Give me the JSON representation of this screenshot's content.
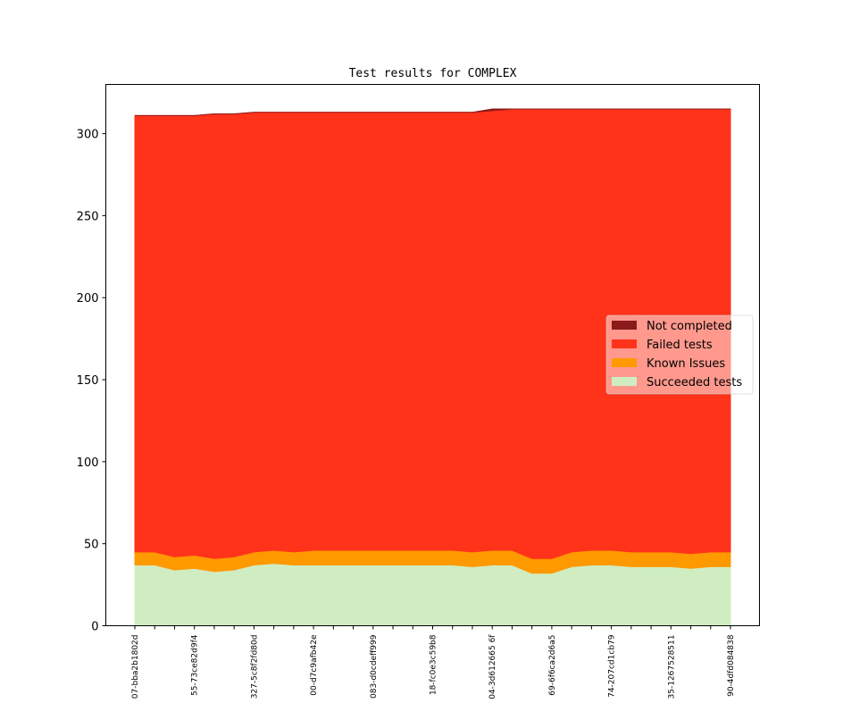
{
  "chart_data": {
    "type": "area",
    "stacked": true,
    "title": "Test results for COMPLEX",
    "xlabel": "",
    "ylabel": "",
    "ylim": [
      0,
      330
    ],
    "yticks": [
      0,
      50,
      100,
      150,
      200,
      250,
      300
    ],
    "grid": false,
    "legend_position": "right",
    "x_tick_labels": [
      "07-bba2b1802d",
      "",
      "",
      "55-73ce82d9f4",
      "",
      "",
      "327-5c8f2fd80d",
      "",
      "",
      "00-d7c9afb42e",
      "",
      "",
      "083-d0cdeff999",
      "",
      "",
      "18-fc0e3c59b8",
      "",
      "",
      "04-3d612665 6f",
      "",
      "",
      "69-6f6ca2d6a5",
      "",
      "",
      "74-207cd1cb79",
      "",
      "",
      "35-1267528511",
      "",
      "",
      "90-4dfd084838"
    ],
    "series": [
      {
        "name": "Succeeded tests",
        "color": "#d0edc2",
        "values": [
          37,
          37,
          34,
          35,
          33,
          34,
          37,
          38,
          37,
          37,
          37,
          37,
          37,
          37,
          37,
          37,
          37,
          36,
          37,
          37,
          32,
          32,
          36,
          37,
          37,
          36,
          36,
          36,
          35,
          36,
          36
        ]
      },
      {
        "name": "Known Issues",
        "color": "#ff9900",
        "values": [
          8,
          8,
          8,
          8,
          8,
          8,
          8,
          8,
          8,
          9,
          9,
          9,
          9,
          9,
          9,
          9,
          9,
          9,
          9,
          9,
          9,
          9,
          9,
          9,
          9,
          9,
          9,
          9,
          9,
          9,
          9
        ]
      },
      {
        "name": "Failed tests",
        "color": "#ff331a",
        "values": [
          266,
          266,
          269,
          268,
          271,
          270,
          268,
          267,
          268,
          267,
          267,
          267,
          267,
          267,
          267,
          267,
          267,
          268,
          268,
          269,
          274,
          274,
          270,
          269,
          269,
          270,
          270,
          270,
          271,
          270,
          270
        ]
      },
      {
        "name": "Not completed",
        "color": "#8b1a1a",
        "values": [
          0,
          0,
          0,
          0,
          0,
          0,
          0,
          0,
          0,
          0,
          0,
          0,
          0,
          0,
          0,
          0,
          0,
          0,
          1,
          0,
          0,
          0,
          0,
          0,
          0,
          0,
          0,
          0,
          0,
          0,
          0
        ]
      }
    ],
    "legend_order": [
      "Not completed",
      "Failed tests",
      "Known Issues",
      "Succeeded tests"
    ]
  }
}
